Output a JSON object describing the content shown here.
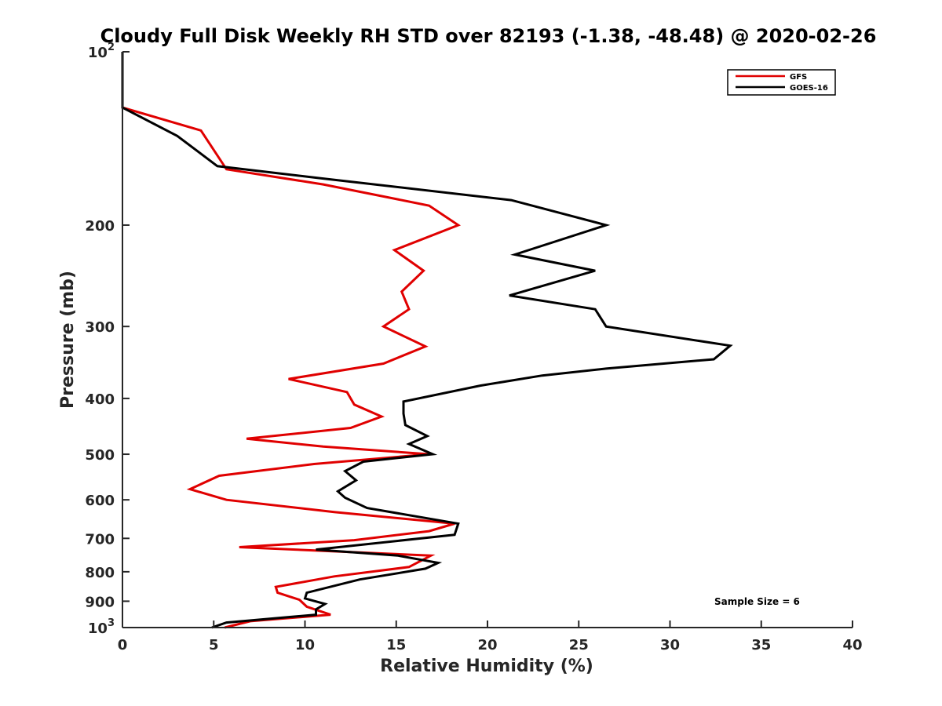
{
  "chart_data": {
    "type": "line",
    "title": "Cloudy Full Disk Weekly RH STD over 82193 (-1.38, -48.48) @ 2020-02-26",
    "xlabel": "Relative Humidity (%)",
    "ylabel": "Pressure (mb)",
    "xlim": [
      0,
      40
    ],
    "ylim": [
      100,
      1000
    ],
    "y_scale": "log",
    "y_reversed": true,
    "grid": false,
    "legend_position": "top-right",
    "x_ticks": [
      {
        "value": 0,
        "label": "0"
      },
      {
        "value": 5,
        "label": "5"
      },
      {
        "value": 10,
        "label": "10"
      },
      {
        "value": 15,
        "label": "15"
      },
      {
        "value": 20,
        "label": "20"
      },
      {
        "value": 25,
        "label": "25"
      },
      {
        "value": 30,
        "label": "30"
      },
      {
        "value": 35,
        "label": "35"
      },
      {
        "value": 40,
        "label": "40"
      }
    ],
    "y_ticks": [
      {
        "value": 100,
        "base": "10",
        "exp": "2",
        "label": ""
      },
      {
        "value": 200,
        "label": "200"
      },
      {
        "value": 300,
        "label": "300"
      },
      {
        "value": 400,
        "label": "400"
      },
      {
        "value": 500,
        "label": "500"
      },
      {
        "value": 600,
        "label": "600"
      },
      {
        "value": 700,
        "label": "700"
      },
      {
        "value": 800,
        "label": "800"
      },
      {
        "value": 900,
        "label": "900"
      },
      {
        "value": 1000,
        "base": "10",
        "exp": "3",
        "label": ""
      }
    ],
    "series": [
      {
        "name": "GFS",
        "color": "#e00000",
        "points": [
          [
            0,
            100
          ],
          [
            0,
            125
          ],
          [
            4.3,
            137
          ],
          [
            5.7,
            160
          ],
          [
            11,
            170
          ],
          [
            16.8,
            185
          ],
          [
            18.4,
            200
          ],
          [
            14.9,
            221
          ],
          [
            16.5,
            240
          ],
          [
            15.3,
            261
          ],
          [
            15.7,
            280
          ],
          [
            14.3,
            300
          ],
          [
            16.6,
            325
          ],
          [
            14.3,
            348
          ],
          [
            9.1,
            370
          ],
          [
            12.3,
            390
          ],
          [
            12.7,
            410
          ],
          [
            14.2,
            430
          ],
          [
            12.5,
            450
          ],
          [
            6.8,
            470
          ],
          [
            11.0,
            485
          ],
          [
            16.8,
            500
          ],
          [
            10.5,
            520
          ],
          [
            5.3,
            545
          ],
          [
            3.7,
            575
          ],
          [
            5.7,
            600
          ],
          [
            11.6,
            630
          ],
          [
            18.2,
            660
          ],
          [
            16.8,
            680
          ],
          [
            12.7,
            705
          ],
          [
            6.4,
            725
          ],
          [
            16.9,
            750
          ],
          [
            15.7,
            785
          ],
          [
            11.6,
            815
          ],
          [
            8.4,
            850
          ],
          [
            8.5,
            870
          ],
          [
            9.7,
            895
          ],
          [
            10.1,
            920
          ],
          [
            11.4,
            950
          ],
          [
            7.0,
            975
          ],
          [
            5.6,
            1000
          ]
        ]
      },
      {
        "name": "GOES-16",
        "color": "#000000",
        "points": [
          [
            0,
            100
          ],
          [
            0,
            125
          ],
          [
            3.0,
            140
          ],
          [
            5.2,
            158
          ],
          [
            11,
            166
          ],
          [
            21.3,
            181
          ],
          [
            26.5,
            200
          ],
          [
            21.5,
            225
          ],
          [
            25.9,
            240
          ],
          [
            21.2,
            265
          ],
          [
            25.9,
            280
          ],
          [
            26.5,
            300
          ],
          [
            33.3,
            324
          ],
          [
            32.4,
            342
          ],
          [
            26.5,
            355
          ],
          [
            23.0,
            365
          ],
          [
            19.6,
            380
          ],
          [
            15.4,
            405
          ],
          [
            15.4,
            425
          ],
          [
            15.5,
            445
          ],
          [
            16.7,
            465
          ],
          [
            15.7,
            480
          ],
          [
            17.0,
            500
          ],
          [
            13.2,
            515
          ],
          [
            12.2,
            535
          ],
          [
            12.8,
            555
          ],
          [
            11.8,
            580
          ],
          [
            12.2,
            595
          ],
          [
            13.4,
            620
          ],
          [
            18.4,
            660
          ],
          [
            18.2,
            690
          ],
          [
            10.6,
            732
          ],
          [
            15.1,
            750
          ],
          [
            17.3,
            772
          ],
          [
            16.6,
            790
          ],
          [
            13.0,
            825
          ],
          [
            10.1,
            870
          ],
          [
            10.0,
            890
          ],
          [
            11.1,
            910
          ],
          [
            10.6,
            930
          ],
          [
            10.6,
            950
          ],
          [
            5.7,
            980
          ],
          [
            4.9,
            1000
          ]
        ]
      }
    ],
    "annotation": "Sample Size = 6"
  }
}
